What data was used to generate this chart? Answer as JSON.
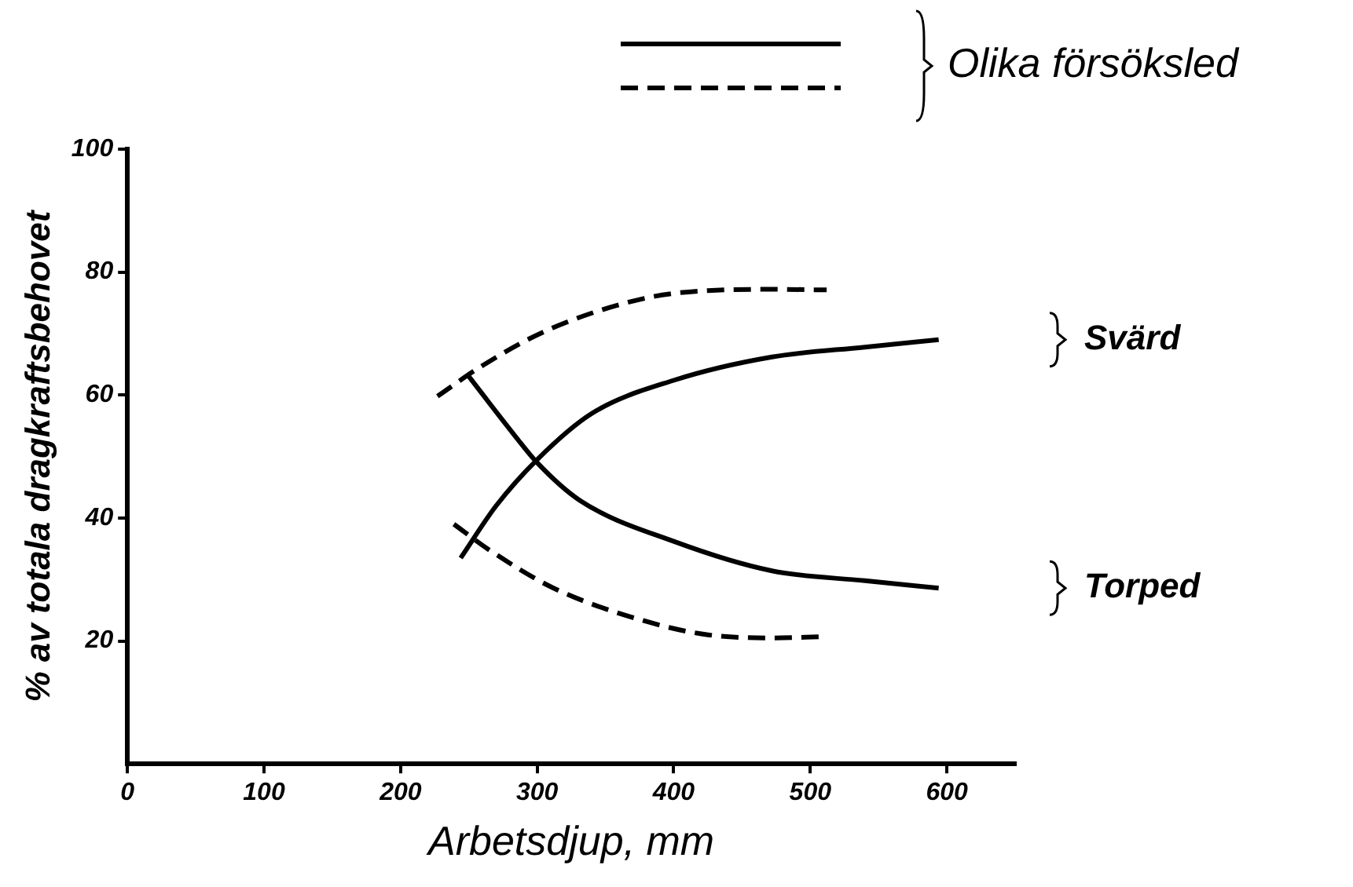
{
  "chart_data": {
    "type": "line",
    "xlabel": "Arbetsdjup, mm",
    "ylabel": "% av totala dragkraftsbehovet",
    "legend_title": "Olika försöksled",
    "legend": "right",
    "grid": false,
    "marker": "none",
    "xlim": [
      0,
      650
    ],
    "xticks": [
      0,
      100,
      200,
      300,
      400,
      500,
      600
    ],
    "ylim": [
      0,
      100
    ],
    "yticks": [
      20,
      40,
      60,
      80,
      100
    ],
    "series": [
      {
        "name": "Svärd",
        "color": "#000000",
        "line_style": "solid",
        "x": [
          244,
          270,
          300,
          340,
          400,
          472,
          540,
          594
        ],
        "values": [
          33.5,
          42,
          49.5,
          57,
          62.4,
          66.2,
          67.8,
          69
        ]
      },
      {
        "name": "Torped",
        "color": "#000000",
        "line_style": "solid",
        "x": [
          249,
          284,
          300,
          331,
          400,
          472,
          540,
          594
        ],
        "values": [
          63.3,
          53.3,
          49,
          42.9,
          36.2,
          31.4,
          29.8,
          28.6
        ]
      },
      {
        "color": "#000000",
        "line_style": "dashed",
        "x": [
          227,
          260,
          307,
          378,
          425,
          472,
          512
        ],
        "values": [
          59.8,
          64.8,
          70.5,
          75.7,
          77,
          77.2,
          77.1
        ]
      },
      {
        "color": "#000000",
        "line_style": "dashed",
        "x": [
          239,
          265,
          312,
          378,
          425,
          472,
          509
        ],
        "values": [
          39,
          34.8,
          28.6,
          23.3,
          21,
          20.5,
          20.7
        ]
      }
    ]
  }
}
